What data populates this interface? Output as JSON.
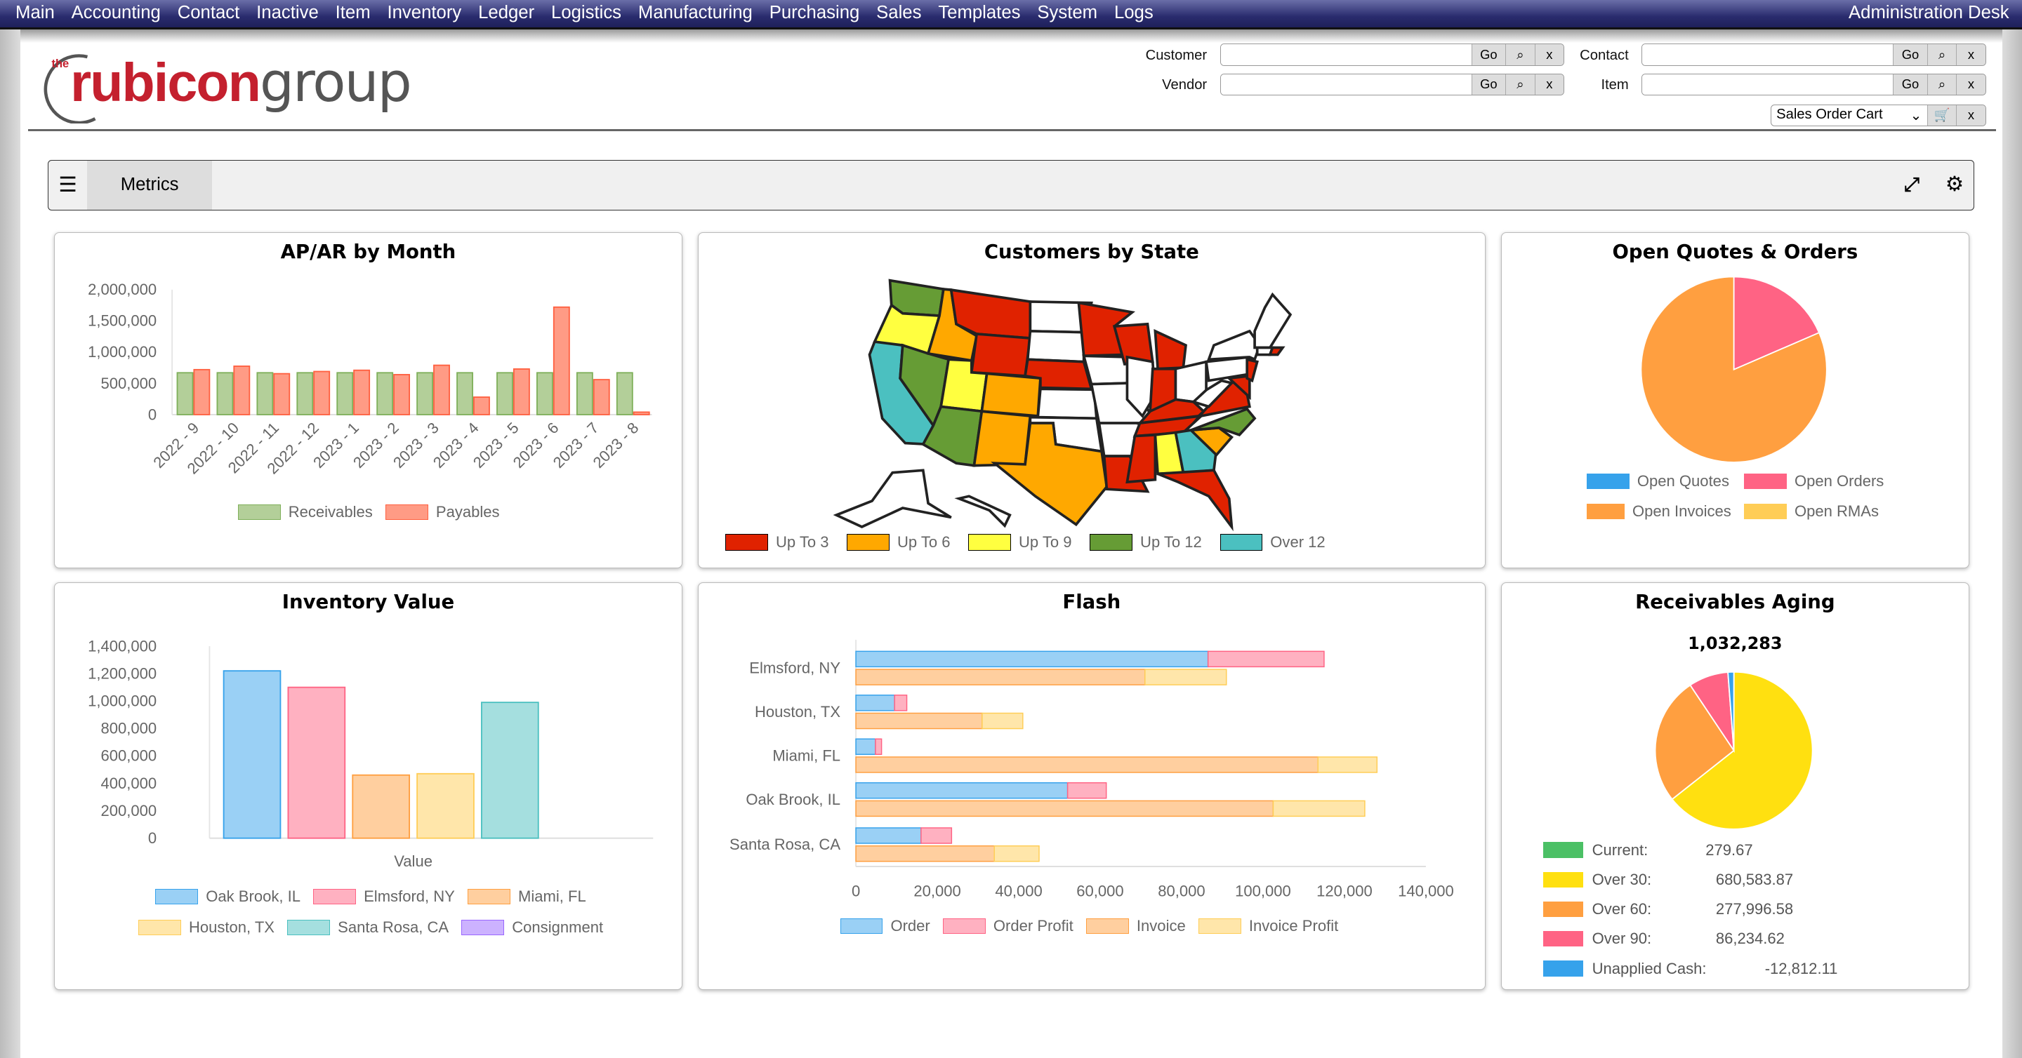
{
  "nav": {
    "items": [
      "Main",
      "Accounting",
      "Contact",
      "Inactive",
      "Item",
      "Inventory",
      "Ledger",
      "Logistics",
      "Manufacturing",
      "Purchasing",
      "Sales",
      "Templates",
      "System",
      "Logs"
    ],
    "right_label": "Administration Desk"
  },
  "logo": {
    "text_small": "the",
    "text_red": "rubicon",
    "text_gray": "group"
  },
  "search": {
    "customer_label": "Customer",
    "vendor_label": "Vendor",
    "contact_label": "Contact",
    "item_label": "Item",
    "go": "Go",
    "search_glyph": "⌕",
    "clear": "x",
    "cart_select": "Sales Order Cart",
    "customer_value": "",
    "vendor_value": "",
    "contact_value": "",
    "item_value": ""
  },
  "toolbar": {
    "tab": "Metrics",
    "menu_icon": "hamburger-icon",
    "expand_icon": "expand-icon",
    "settings_icon": "gear-icon"
  },
  "panels": {
    "apar": "AP/AR by Month",
    "map": "Customers by State",
    "quotes": "Open Quotes & Orders",
    "inventory": "Inventory Value",
    "flash": "Flash",
    "aging": "Receivables Aging"
  },
  "map": {
    "legend": [
      {
        "label": "Up To 3",
        "color": "#e02200"
      },
      {
        "label": "Up To 6",
        "color": "#ffa800"
      },
      {
        "label": "Up To 9",
        "color": "#ffff40"
      },
      {
        "label": "Up To 12",
        "color": "#669c35"
      },
      {
        "label": "Over 12",
        "color": "#4bc0c0"
      }
    ],
    "state_categories": {
      "WA": "Up To 12",
      "OR": "Up To 9",
      "CA": "Over 12",
      "NV": "Up To 12",
      "ID": "Up To 6",
      "MT": "Up To 3",
      "WY": "Up To 3",
      "UT": "Up To 9",
      "CO": "Up To 6",
      "AZ": "Up To 12",
      "NM": "Up To 6",
      "ND": "none",
      "SD": "none",
      "NE": "Up To 3",
      "KS": "none",
      "OK": "none",
      "TX": "Up To 6",
      "MN": "Up To 3",
      "IA": "none",
      "MO": "none",
      "AR": "none",
      "LA": "Up To 3",
      "WI": "Up To 3",
      "IL": "none",
      "MI": "Up To 3",
      "IN": "Up To 3",
      "OH": "none",
      "KY": "Up To 3",
      "TN": "Up To 3",
      "MS": "Up To 3",
      "AL": "Up To 9",
      "GA": "Over 12",
      "FL": "Up To 3",
      "SC": "Up To 6",
      "NC": "Up To 12",
      "VA": "Up To 3",
      "WV": "none",
      "PA": "none",
      "NY": "none",
      "MD": "Up To 3",
      "NJ": "Up To 3",
      "NE_REGION": "none",
      "CT": "none",
      "RI": "Up To 3",
      "AK": "none",
      "HI": "none"
    }
  },
  "chart_data": [
    {
      "type": "bar",
      "title": "AP/AR by Month",
      "categories": [
        "2022 - 9",
        "2022 - 10",
        "2022 - 11",
        "2022 - 12",
        "2023 - 1",
        "2023 - 2",
        "2023 - 3",
        "2023 - 4",
        "2023 - 5",
        "2023 - 6",
        "2023 - 7",
        "2023 - 8"
      ],
      "series": [
        {
          "name": "Receivables",
          "color": "#b3cf99",
          "border": "#7fb05a",
          "values": [
            670000,
            670000,
            670000,
            670000,
            670000,
            670000,
            670000,
            670000,
            670000,
            670000,
            670000,
            670000
          ]
        },
        {
          "name": "Payables",
          "color": "#ff9b85",
          "border": "#ff6040",
          "values": [
            720000,
            775000,
            655000,
            690000,
            710000,
            640000,
            790000,
            280000,
            730000,
            1720000,
            560000,
            40000
          ]
        }
      ],
      "ylim": [
        0,
        2000000
      ],
      "y_tick_labels": [
        "0",
        "500,000",
        "1,000,000",
        "1,500,000",
        "2,000,000"
      ],
      "legend": "bottom"
    },
    {
      "type": "bar",
      "title": "Inventory Value",
      "categories": [
        "Value"
      ],
      "series": [
        {
          "name": "Oak Brook, IL",
          "color": "#9ad0f5",
          "border": "#36a2eb",
          "values": [
            1220000
          ]
        },
        {
          "name": "Elmsford, NY",
          "color": "#ffb1c1",
          "border": "#ff6384",
          "values": [
            1100000
          ]
        },
        {
          "name": "Miami, FL",
          "color": "#ffcf9f",
          "border": "#ff9f40",
          "values": [
            460000
          ]
        },
        {
          "name": "Houston, TX",
          "color": "#ffe6aa",
          "border": "#ffcd56",
          "values": [
            470000
          ]
        },
        {
          "name": "Santa Rosa, CA",
          "color": "#a5dfdf",
          "border": "#4bc0c0",
          "values": [
            990000
          ]
        },
        {
          "name": "Consignment",
          "color": "#ccb2ff",
          "border": "#9966ff",
          "values": [
            0
          ]
        }
      ],
      "ylim": [
        0,
        1400000
      ],
      "y_tick_labels": [
        "0",
        "200,000",
        "400,000",
        "600,000",
        "800,000",
        "1,000,000",
        "1,200,000",
        "1,400,000"
      ],
      "legend": "bottom"
    },
    {
      "type": "bar",
      "orientation": "horizontal",
      "stacked": true,
      "title": "Flash",
      "categories": [
        "Elmsford, NY",
        "Houston, TX",
        "Miami, FL",
        "Oak Brook, IL",
        "Santa Rosa, CA"
      ],
      "series": [
        {
          "name": "Order",
          "stack": "order",
          "color": "#9ad0f5",
          "border": "#36a2eb",
          "values": [
            86500,
            9500,
            4800,
            52000,
            16000
          ]
        },
        {
          "name": "Order Profit",
          "stack": "order",
          "color": "#ffb1c1",
          "border": "#ff6384",
          "values": [
            28500,
            3000,
            1500,
            9500,
            7500
          ]
        },
        {
          "name": "Invoice",
          "stack": "invoice",
          "color": "#ffcf9f",
          "border": "#ff9f40",
          "values": [
            71000,
            31000,
            113500,
            102500,
            34000
          ]
        },
        {
          "name": "Invoice Profit",
          "stack": "invoice",
          "color": "#ffe6aa",
          "border": "#ffcd56",
          "values": [
            20000,
            10000,
            14500,
            22500,
            11000
          ]
        }
      ],
      "xlim": [
        0,
        140000
      ],
      "x_tick_labels": [
        "0",
        "20,000",
        "40,000",
        "60,000",
        "80,000",
        "100,000",
        "120,000",
        "140,000"
      ],
      "legend": "bottom"
    },
    {
      "type": "pie",
      "title": "Open Quotes & Orders",
      "slices": [
        {
          "label": "Open Quotes",
          "color": "#36a2eb",
          "percent": 0
        },
        {
          "label": "Open Orders",
          "color": "#ff6384",
          "percent": 18.5
        },
        {
          "label": "Open Invoices",
          "color": "#ff9f40",
          "percent": 81.5
        },
        {
          "label": "Open RMAs",
          "color": "#ffcd56",
          "percent": 0
        }
      ],
      "legend": "bottom"
    },
    {
      "type": "pie",
      "title": "Receivables Aging",
      "total": "1,032,283",
      "slices": [
        {
          "label": "Current:",
          "value_text": "279.67",
          "value": 279.67,
          "color": "#4bc065"
        },
        {
          "label": "Over 30:",
          "value_text": "680,583.87",
          "value": 680583.87,
          "color": "#ffe010"
        },
        {
          "label": "Over 60:",
          "value_text": "277,996.58",
          "value": 277996.58,
          "color": "#ff9f40"
        },
        {
          "label": "Over 90:",
          "value_text": "86,234.62",
          "value": 86234.62,
          "color": "#ff6384"
        },
        {
          "label": "Unapplied Cash:",
          "value_text": "-12,812.11",
          "value": -12812.11,
          "color": "#36a2eb"
        }
      ],
      "legend": "bottom"
    }
  ]
}
